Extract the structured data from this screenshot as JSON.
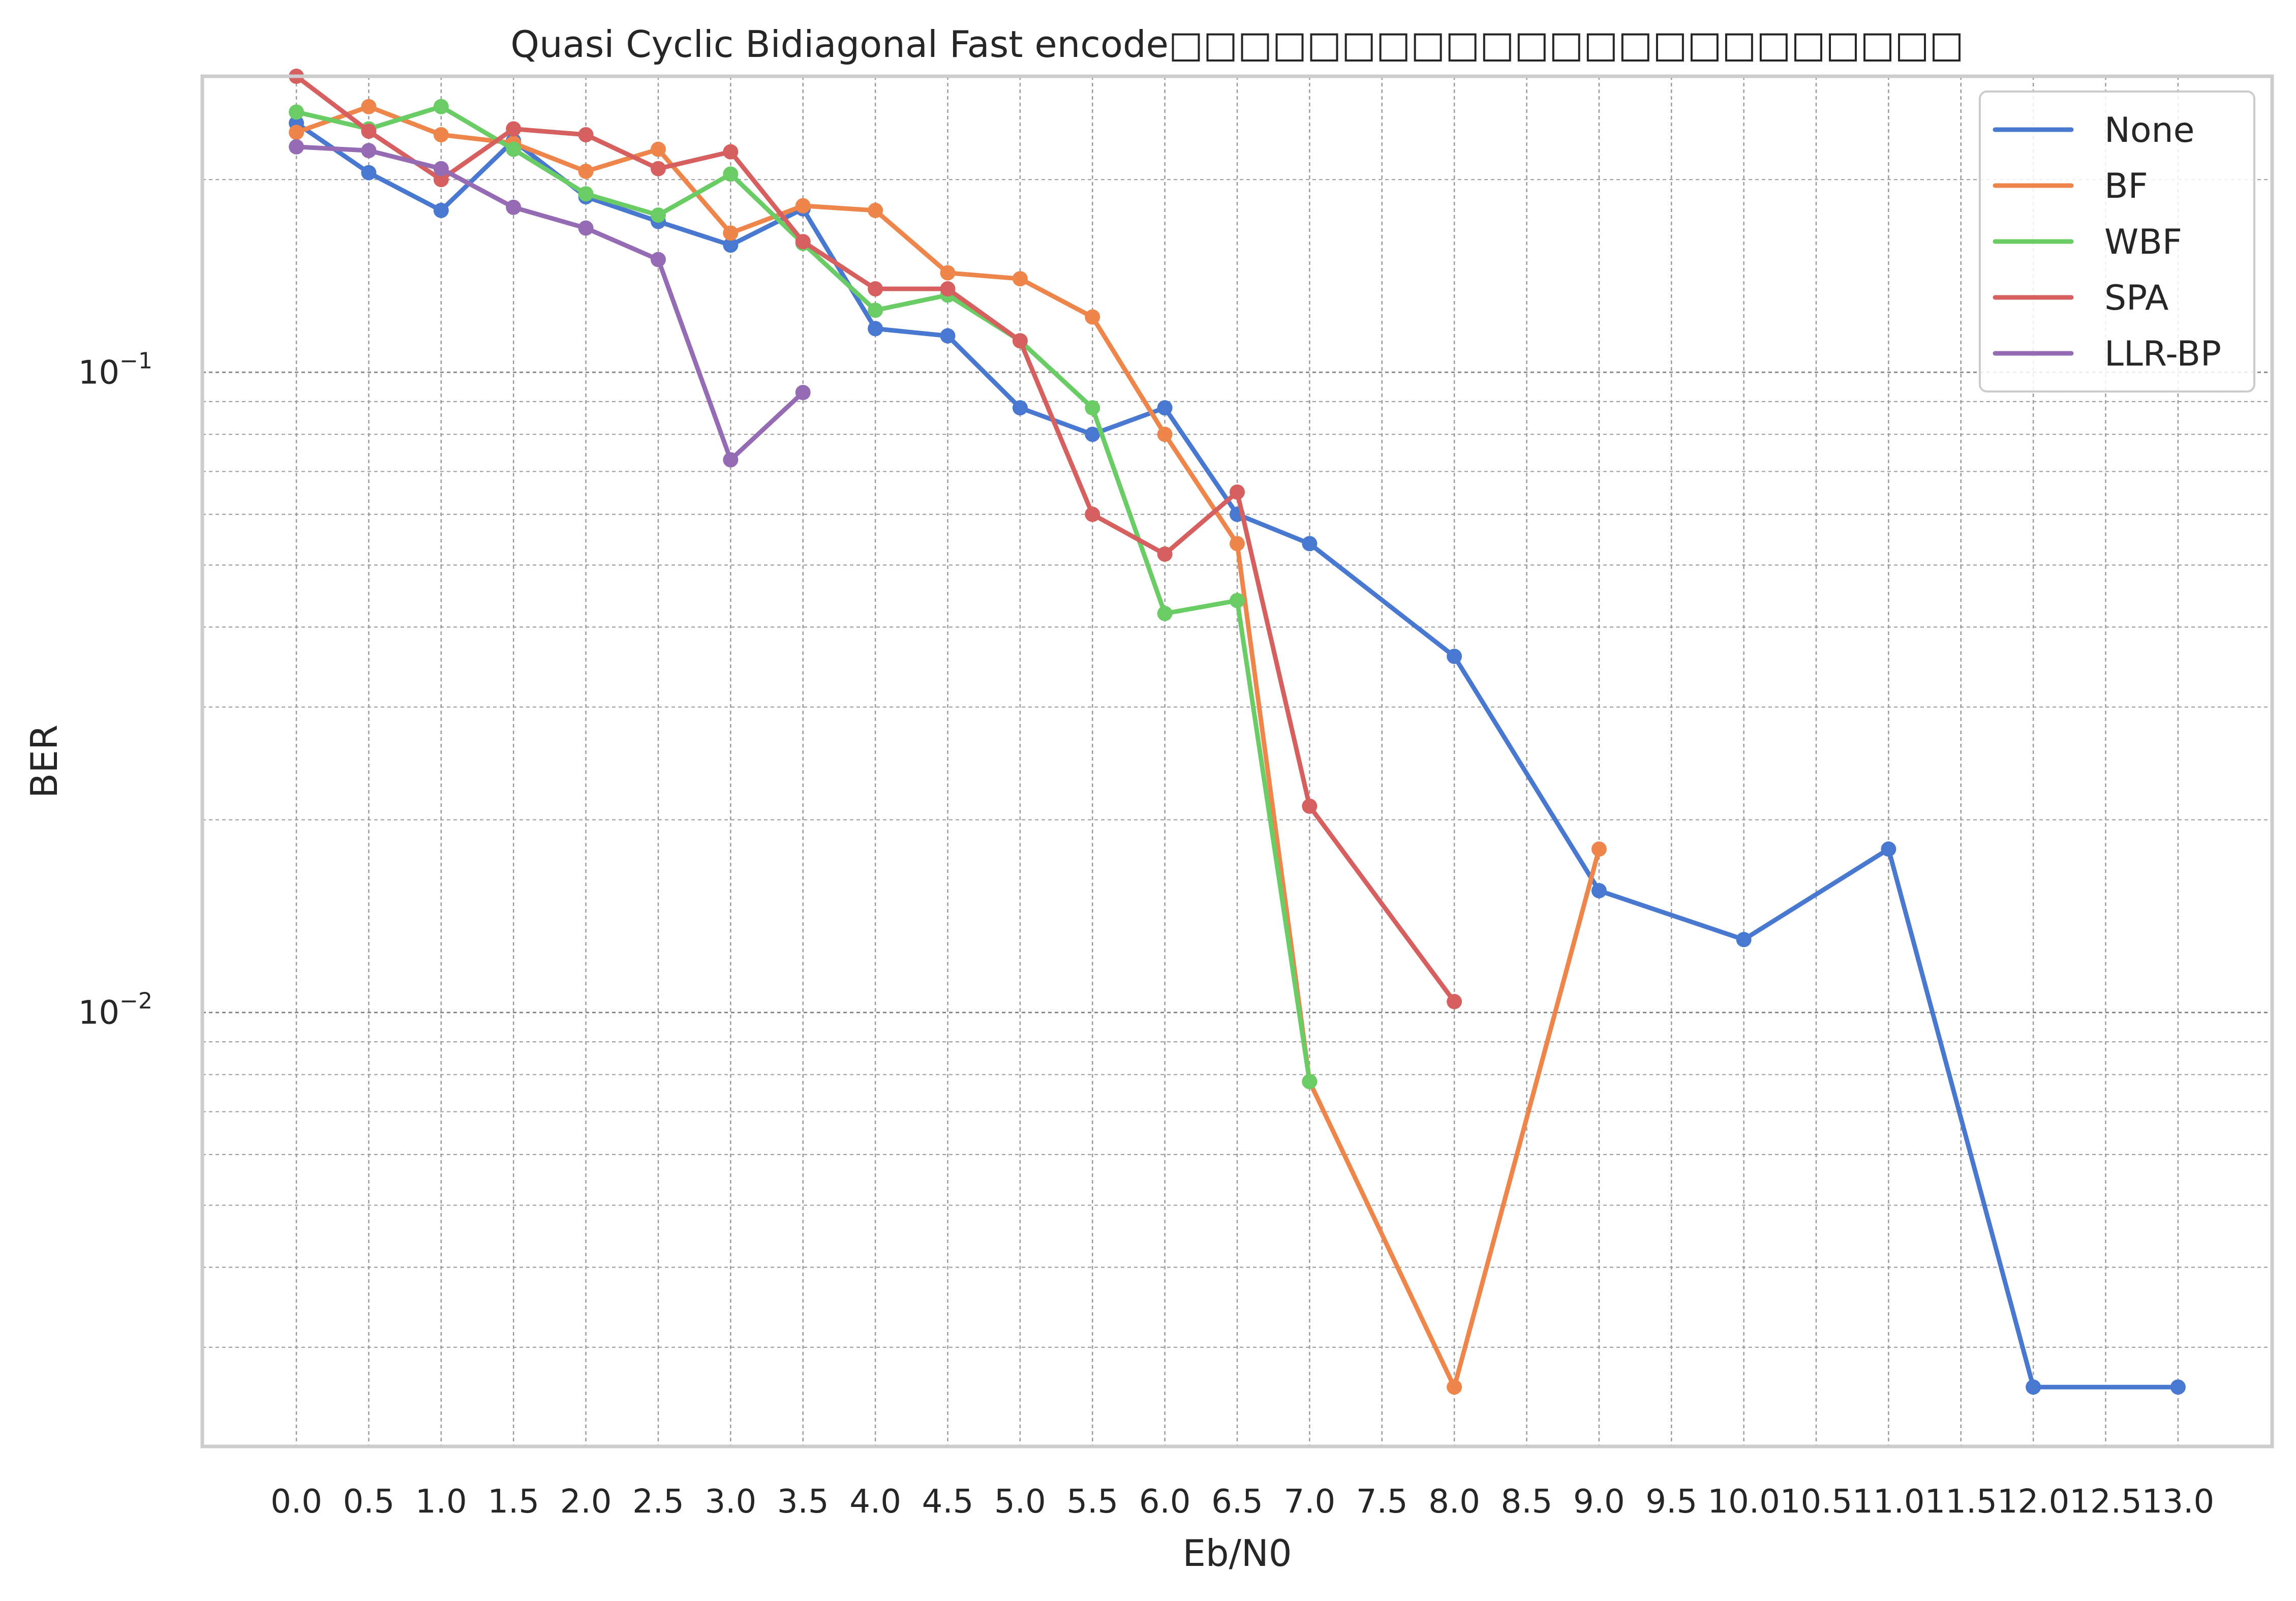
{
  "chart_data": {
    "type": "line",
    "title": "Quasi Cyclic Bidiagonal Fast encode□□□□□□□□□□□□□□□□□□□□□□□",
    "xlabel": "Eb/N0",
    "ylabel": "BER",
    "xlim": [
      -0.65,
      13.65
    ],
    "ylim": [
      0.0021,
      0.29
    ],
    "yscale": "log",
    "grid": true,
    "legend_position": "top-right",
    "x_ticks": [
      "0.0",
      "0.5",
      "1.0",
      "1.5",
      "2.0",
      "2.5",
      "3.0",
      "3.5",
      "4.0",
      "4.5",
      "5.0",
      "5.5",
      "6.0",
      "6.5",
      "7.0",
      "7.5",
      "8.0",
      "8.5",
      "9.0",
      "9.5",
      "10.0",
      "10.5",
      "11.0",
      "11.5",
      "12.0",
      "12.5",
      "13.0"
    ],
    "y_ticks": [
      {
        "value": 0.1,
        "base": "10",
        "exp": "−1"
      },
      {
        "value": 0.01,
        "base": "10",
        "exp": "−2"
      }
    ],
    "series": [
      {
        "name": "None",
        "color": "#4878d0",
        "x": [
          0.0,
          0.5,
          1.0,
          1.5,
          2.0,
          2.5,
          3.0,
          3.5,
          4.0,
          4.5,
          5.0,
          5.5,
          6.0,
          6.5,
          7.0,
          8.0,
          9.0,
          10.0,
          11.0,
          12.0,
          13.0
        ],
        "y": [
          0.245,
          0.205,
          0.179,
          0.23,
          0.188,
          0.172,
          0.158,
          0.18,
          0.117,
          0.114,
          0.088,
          0.08,
          0.088,
          0.06,
          0.054,
          0.036,
          0.0155,
          0.013,
          0.018,
          0.0026,
          0.0026
        ]
      },
      {
        "name": "BF",
        "color": "#ee854a",
        "x": [
          0.0,
          0.5,
          1.0,
          1.5,
          2.0,
          2.5,
          3.0,
          3.5,
          4.0,
          4.5,
          5.0,
          5.5,
          6.0,
          6.5,
          7.0,
          8.0,
          9.0
        ],
        "y": [
          0.237,
          0.26,
          0.235,
          0.228,
          0.206,
          0.223,
          0.165,
          0.182,
          0.179,
          0.143,
          0.14,
          0.122,
          0.08,
          0.054,
          0.0078,
          0.0026,
          0.018
        ]
      },
      {
        "name": "WBF",
        "color": "#6acc64",
        "x": [
          0.0,
          0.5,
          1.0,
          1.5,
          2.0,
          2.5,
          3.0,
          3.5,
          4.0,
          4.5,
          5.0,
          5.5,
          6.0,
          6.5,
          7.0
        ],
        "y": [
          0.255,
          0.24,
          0.26,
          0.223,
          0.19,
          0.176,
          0.204,
          0.159,
          0.125,
          0.132,
          0.112,
          0.088,
          0.042,
          0.044,
          0.0078
        ]
      },
      {
        "name": "SPA",
        "color": "#d65f5f",
        "x": [
          0.0,
          0.5,
          1.0,
          1.5,
          2.0,
          2.5,
          3.0,
          3.5,
          4.0,
          4.5,
          5.0,
          5.5,
          6.0,
          6.5,
          7.0,
          8.0
        ],
        "y": [
          0.29,
          0.238,
          0.2,
          0.24,
          0.235,
          0.208,
          0.221,
          0.16,
          0.135,
          0.135,
          0.112,
          0.06,
          0.052,
          0.065,
          0.021,
          0.0104
        ]
      },
      {
        "name": "LLR-BP",
        "color": "#956cb4",
        "x": [
          0.0,
          0.5,
          1.0,
          1.5,
          2.0,
          2.5,
          3.0,
          3.5
        ],
        "y": [
          0.225,
          0.222,
          0.208,
          0.181,
          0.168,
          0.15,
          0.073,
          0.093
        ]
      }
    ]
  }
}
